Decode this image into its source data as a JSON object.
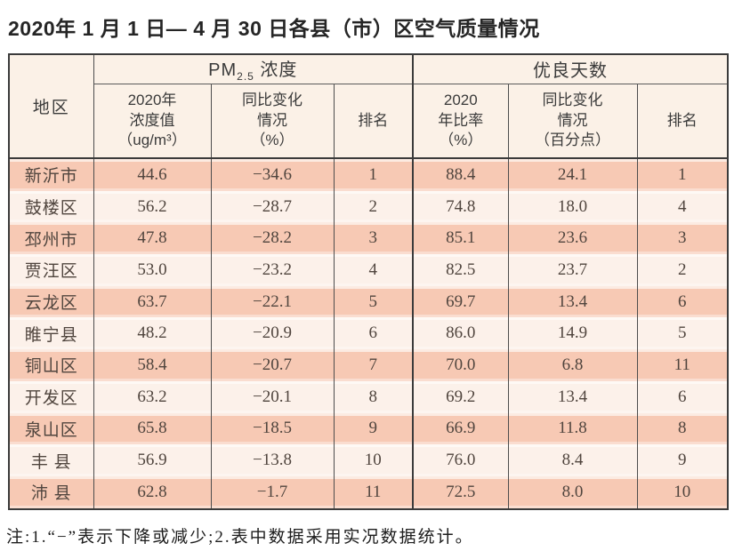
{
  "page": {
    "title": "2020年 1 月 1 日— 4 月 30 日各县（市）区空气质量情况",
    "note": "注:1.“−”表示下降或减少;2.表中数据采用实况数据统计。"
  },
  "table": {
    "header": {
      "region": "地区",
      "pm_group_prefix": "PM",
      "pm_group_sub": "2.5",
      "pm_group_suffix": " 浓度",
      "days_group": "优良天数",
      "pm_value": "2020年\n浓度值\n（ug/m³）",
      "pm_change": "同比变化\n情况\n（%）",
      "pm_rank": "排名",
      "days_ratio": "2020\n年比率\n（%）",
      "days_change": "同比变化\n情况\n（百分点）",
      "days_rank": "排名"
    },
    "rows": [
      {
        "region": "新沂市",
        "pm_value": "44.6",
        "pm_change": "−34.6",
        "pm_rank": "1",
        "days_ratio": "88.4",
        "days_change": "24.1",
        "days_rank": "1"
      },
      {
        "region": "鼓楼区",
        "pm_value": "56.2",
        "pm_change": "−28.7",
        "pm_rank": "2",
        "days_ratio": "74.8",
        "days_change": "18.0",
        "days_rank": "4"
      },
      {
        "region": "邳州市",
        "pm_value": "47.8",
        "pm_change": "−28.2",
        "pm_rank": "3",
        "days_ratio": "85.1",
        "days_change": "23.6",
        "days_rank": "3"
      },
      {
        "region": "贾汪区",
        "pm_value": "53.0",
        "pm_change": "−23.2",
        "pm_rank": "4",
        "days_ratio": "82.5",
        "days_change": "23.7",
        "days_rank": "2"
      },
      {
        "region": "云龙区",
        "pm_value": "63.7",
        "pm_change": "−22.1",
        "pm_rank": "5",
        "days_ratio": "69.7",
        "days_change": "13.4",
        "days_rank": "6"
      },
      {
        "region": "睢宁县",
        "pm_value": "48.2",
        "pm_change": "−20.9",
        "pm_rank": "6",
        "days_ratio": "86.0",
        "days_change": "14.9",
        "days_rank": "5"
      },
      {
        "region": "铜山区",
        "pm_value": "58.4",
        "pm_change": "−20.7",
        "pm_rank": "7",
        "days_ratio": "70.0",
        "days_change": "6.8",
        "days_rank": "11"
      },
      {
        "region": "开发区",
        "pm_value": "63.2",
        "pm_change": "−20.1",
        "pm_rank": "8",
        "days_ratio": "69.2",
        "days_change": "13.4",
        "days_rank": "6"
      },
      {
        "region": "泉山区",
        "pm_value": "65.8",
        "pm_change": "−18.5",
        "pm_rank": "9",
        "days_ratio": "66.9",
        "days_change": "11.8",
        "days_rank": "8"
      },
      {
        "region": "丰 县",
        "pm_value": "56.9",
        "pm_change": "−13.8",
        "pm_rank": "10",
        "days_ratio": "76.0",
        "days_change": "8.4",
        "days_rank": "9"
      },
      {
        "region": "沛 县",
        "pm_value": "62.8",
        "pm_change": "−1.7",
        "pm_rank": "11",
        "days_ratio": "72.5",
        "days_change": "8.0",
        "days_rank": "10"
      }
    ],
    "colors": {
      "row_odd_bg": "#f7c9b4",
      "row_even_bg": "#fcf1ea",
      "header_bg": "#fbf1e7",
      "border": "#3b3b3b"
    }
  }
}
